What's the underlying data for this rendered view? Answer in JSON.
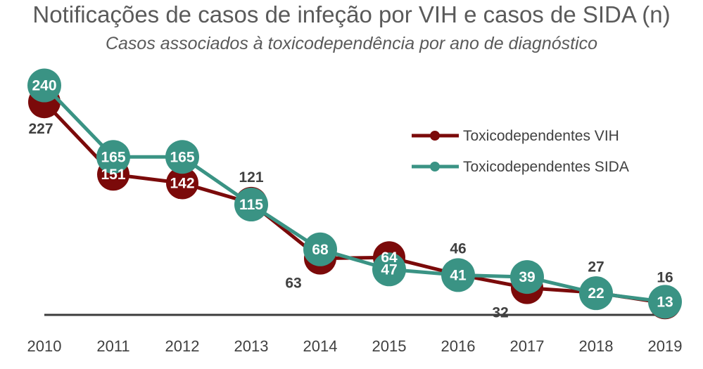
{
  "chart_data": {
    "type": "line",
    "title": "Notificações de casos de infeção por VIH e casos de SIDA (n)",
    "subtitle": "Casos associados à toxicodependência por ano de diagnóstico",
    "categories": [
      "2010",
      "2011",
      "2012",
      "2013",
      "2014",
      "2015",
      "2016",
      "2017",
      "2018",
      "2019"
    ],
    "series": [
      {
        "name": "Toxicodependentes VIH",
        "color": "#7b0a0a",
        "values": [
          227,
          151,
          142,
          121,
          63,
          64,
          46,
          32,
          27,
          16
        ]
      },
      {
        "name": "Toxicodependentes SIDA",
        "color": "#3a9384",
        "values": [
          240,
          165,
          165,
          115,
          68,
          47,
          41,
          39,
          22,
          13
        ]
      }
    ],
    "ylim": [
      0,
      250
    ],
    "xlabel": "",
    "ylabel": "",
    "legend": "top-right"
  }
}
